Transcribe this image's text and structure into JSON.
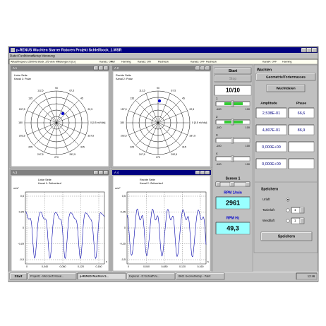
{
  "window": {
    "title": "p-RENUS Wuchten Starrer Rotoren  Projekt Schleifbock_1.WSR",
    "menu": [
      "Datei",
      "Funktionen",
      "Setup",
      "Messung"
    ],
    "status": [
      "Abtastfrequenz 2500Hz  Block: 2/5 viele Mittelungen:0 [Lx]",
      "Kanal1: ON",
      "Ref",
      "Hanning",
      "Kanal2: ON",
      "Rechteck",
      "Kanal3: OFF",
      "Rechteck",
      "Kanal4: OFF",
      "Hanning"
    ]
  },
  "polar_windows": [
    {
      "title": "A 1",
      "side": "Linke Seite",
      "channel": "Kanal 1: Polar"
    },
    {
      "title": "A 2",
      "side": "Rechte Seite",
      "channel": "Kanal 2: Polar"
    }
  ],
  "polar_angle_labels": [
    "0 [0.5 mV/div]",
    "22,5",
    "45",
    "67,5",
    "90",
    "112,5",
    "135",
    "157,5",
    "180",
    "202,5",
    "225",
    "247,5",
    "270",
    "292,5",
    "315",
    "337,5"
  ],
  "time_windows": [
    {
      "title": "A 3",
      "side": "Linke Seite",
      "channel": "Kanal 1: Zeitverlauf"
    },
    {
      "title": "A 4",
      "side": "Rechte Seite",
      "channel": "Kanal 2: Zeitverlauf"
    }
  ],
  "time_y_unit": "m/s²",
  "time_x_unit": "s",
  "time_yticks": [
    "0,5",
    "0,25",
    "0",
    "-0,25",
    "-0,5"
  ],
  "time_xticks": [
    "0",
    "0,040",
    "0,080",
    "0,120",
    "0,160"
  ],
  "controls": {
    "start": "Start",
    "stop": "Stop",
    "counter": "10/10",
    "sliders": [
      "1",
      "2",
      "3",
      "4"
    ],
    "slider_min": "-100",
    "slider_max": "100",
    "screen": "Screen 1",
    "rpm_label": "RPM 1/min",
    "rpm": "2961",
    "hz_label": "RPM Hz",
    "hz": "49,3"
  },
  "wuchten": {
    "title": "Wuchten",
    "geometry_button": "Geometrie/Toriermasses",
    "data_button": "Wuchtdaten",
    "amplitude_header": "Amplitude",
    "phase_header": "Phase",
    "amplitudes": [
      "2,538E-01",
      "4,807E-01",
      "0,000E+00",
      "0,000E+00"
    ],
    "phases": [
      "66,6",
      "86,9"
    ],
    "save_group": "Speichern",
    "options": [
      "Urlaft",
      "Tarierlaft",
      "Weidtlaft"
    ],
    "option_values": [
      "1",
      "1"
    ],
    "save_button": "Speichern"
  },
  "taskbar": {
    "start": "Start",
    "items": [
      "Projekt1 - Microsoft Visual...",
      "p-RENUS Wuchten S...",
      "Explorer - D:\\Schraff\\Vu...",
      "Bild1 Geometriebsp - Paint"
    ],
    "clock": "12:46"
  }
}
